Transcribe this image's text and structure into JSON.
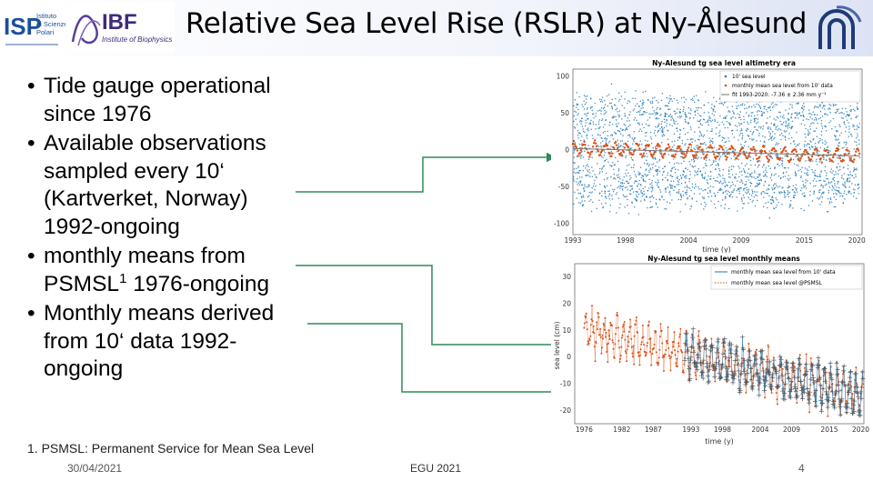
{
  "title": "Relative Sea Level Rise (RSLR) at Ny-Ålesund",
  "logos": {
    "isp_line1": "Istituto",
    "isp_line2": "di Scienze",
    "isp_line3": "Polari",
    "isp_mark": "ISP",
    "ibf_mark": "IBF",
    "ibf_sub": "Institute of Biophysics"
  },
  "bullets": [
    {
      "lines": [
        "Tide gauge operational",
        "since 1976"
      ]
    },
    {
      "lines": [
        "Available observations",
        "sampled every 10‘",
        "(Kartverket, Norway)",
        "1992-ongoing"
      ]
    },
    {
      "lines": [
        "monthly means from",
        "PSMSL"
      ],
      "sup": "1",
      "tail": " 1976-ongoing"
    },
    {
      "lines": [
        "Monthly means derived",
        "from 10‘ data 1992-",
        "ongoing"
      ]
    }
  ],
  "footnote": "1. PSMSL: Permanent Service for Mean Sea Level",
  "footer": {
    "date": "30/04/2021",
    "center": "EGU 2021",
    "page": "4"
  },
  "colors": {
    "blue": "#1f77b4",
    "orange": "#d95319",
    "line": "#2e8b57",
    "trend": "#777777"
  },
  "chart_data": [
    {
      "type": "scatter",
      "title": "Ny-Alesund tg sea level altimetry era",
      "xlabel": "time (y)",
      "ylabel": "",
      "x_ticks": [
        "1993",
        "1998",
        "2004",
        "2009",
        "2015",
        "2020"
      ],
      "x_range": [
        1993,
        2020.5
      ],
      "y_ticks": [
        100,
        50,
        0,
        -50,
        -100
      ],
      "ylim": [
        -115,
        110
      ],
      "legend": [
        "10' sea level",
        "monthly mean sea level from 10' data",
        "fit 1993-2020: -7.36 ± 2.36 mm y⁻¹"
      ],
      "series": [
        {
          "name": "10' sea level",
          "range": [
            -100,
            100
          ]
        },
        {
          "name": "monthly mean sea level from 10' data",
          "values_approx": "±15 around trend"
        },
        {
          "name": "fit 1993-2020",
          "start": 2,
          "end": -8
        }
      ]
    },
    {
      "type": "line",
      "title": "Ny-Alesund tg sea level monthly means",
      "xlabel": "time (y)",
      "ylabel": "sea level (cm)",
      "x_ticks": [
        "1976",
        "1982",
        "1987",
        "1993",
        "1998",
        "2004",
        "2009",
        "2015",
        "2020"
      ],
      "x_range": [
        1974.5,
        2020.5
      ],
      "y_ticks": [
        30,
        20,
        10,
        0,
        -10,
        -20
      ],
      "ylim": [
        -25,
        35
      ],
      "legend": [
        "monthly mean sea level from 10' data",
        "monthly mean sea level @PSMSL"
      ],
      "series": [
        {
          "name": "monthly mean sea level from 10' data",
          "period": [
            1992,
            2020
          ]
        },
        {
          "name": "monthly mean sea level @PSMSL",
          "period": [
            1976,
            2020
          ]
        }
      ]
    }
  ]
}
